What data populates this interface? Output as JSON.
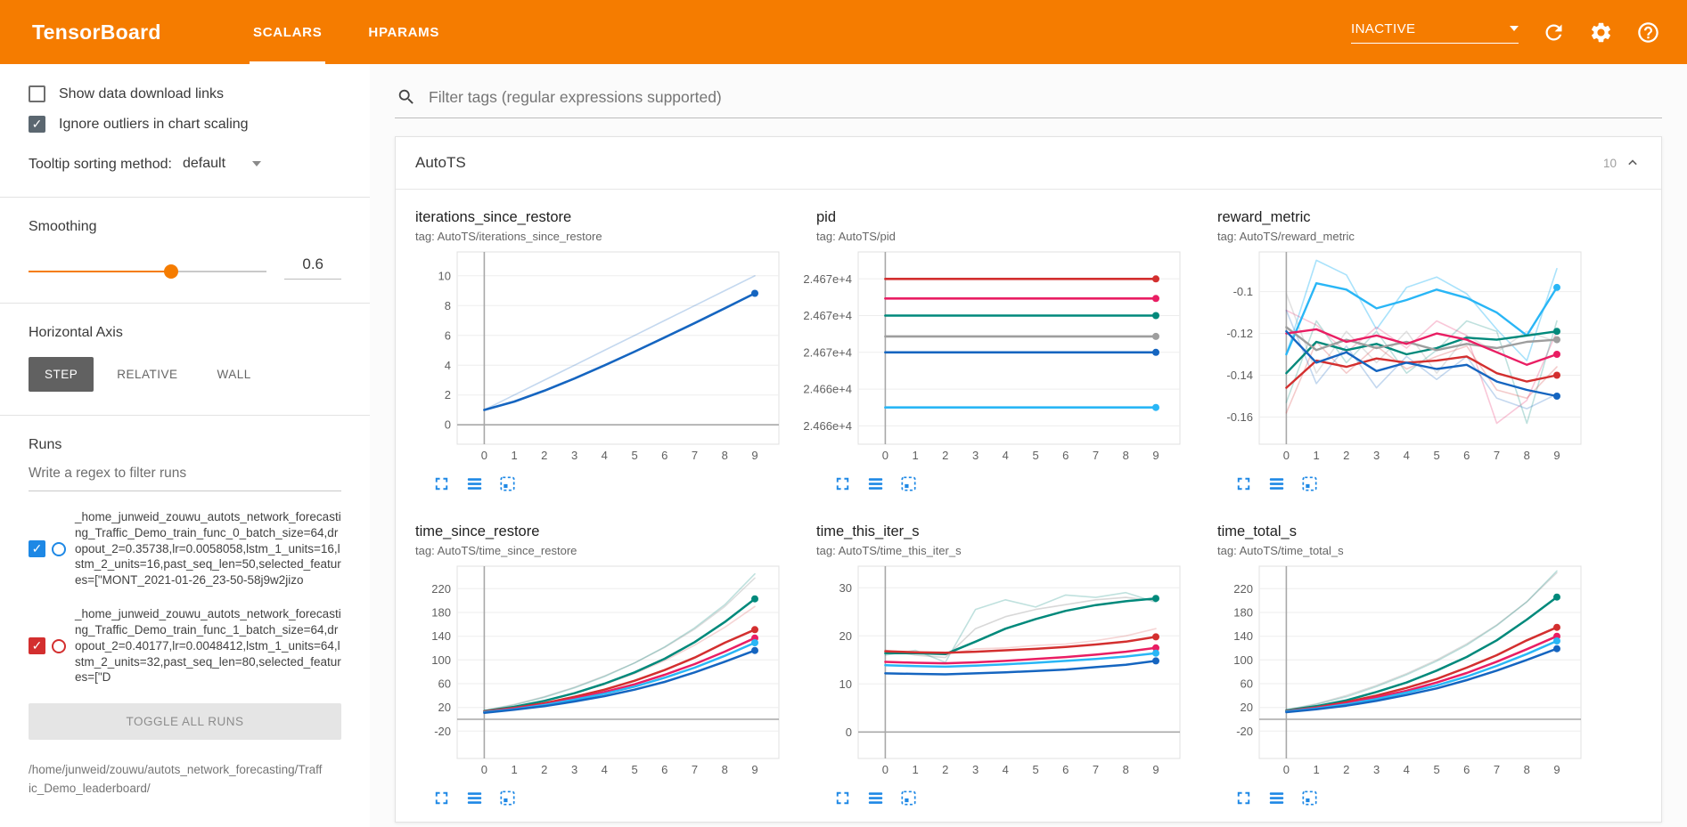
{
  "colors": {
    "header_bar": "#f57c00",
    "accent": "#f57c00",
    "chart_icon_blue": "#1e88e5",
    "active_axis_button": "#616161"
  },
  "header": {
    "title": "TensorBoard",
    "tabs": [
      {
        "label": "SCALARS",
        "active": true
      },
      {
        "label": "HPARAMS",
        "active": false
      }
    ],
    "status_dropdown": "INACTIVE"
  },
  "sidebar": {
    "checkboxes": [
      {
        "label": "Show data download links",
        "checked": false
      },
      {
        "label": "Ignore outliers in chart scaling",
        "checked": true
      }
    ],
    "tooltip_sorting_label": "Tooltip sorting method:",
    "tooltip_sorting_value": "default",
    "smoothing_label": "Smoothing",
    "smoothing_value": "0.6",
    "horizontal_axis_label": "Horizontal Axis",
    "axis_options": [
      {
        "label": "STEP",
        "active": true
      },
      {
        "label": "RELATIVE",
        "active": false
      },
      {
        "label": "WALL",
        "active": false
      }
    ],
    "runs": {
      "label": "Runs",
      "filter_placeholder": "Write a regex to filter runs",
      "items": [
        {
          "label": "_home_junweid_zouwu_autots_network_forecasting_Traffic_Demo_train_func_0_batch_size=64,dropout_2=0.35738,lr=0.0058058,lstm_1_units=16,lstm_2_units=16,past_seq_len=50,selected_features=[\"MONT_2021-01-26_23-50-58j9w2jizo",
          "color": "#1e88e5",
          "checked": true
        },
        {
          "label": "_home_junweid_zouwu_autots_network_forecasting_Traffic_Demo_train_func_1_batch_size=64,dropout_2=0.40177,lr=0.0048412,lstm_1_units=64,lstm_2_units=32,past_seq_len=80,selected_features=[\"D",
          "color": "#d32f2f",
          "checked": true
        }
      ],
      "toggle_all_label": "TOGGLE ALL RUNS",
      "footer_path": "/home/junweid/zouwu/autots_network_forecasting/Traffic_Demo_leaderboard/"
    }
  },
  "main": {
    "filter_placeholder": "Filter tags (regular expressions supported)",
    "card_title": "AutoTS",
    "card_count": "10"
  },
  "chart_data": [
    {
      "type": "line",
      "title": "iterations_since_restore",
      "tag": "tag: AutoTS/iterations_since_restore",
      "x": [
        0,
        1,
        2,
        3,
        4,
        5,
        6,
        7,
        8,
        9
      ],
      "ylim": [
        -1.3,
        11.6
      ],
      "zeroline": true,
      "yticks": [
        {
          "v": 0,
          "label": "0"
        },
        {
          "v": 2,
          "label": "2"
        },
        {
          "v": 4,
          "label": "4"
        },
        {
          "v": 6,
          "label": "6"
        },
        {
          "v": 8,
          "label": "8"
        },
        {
          "v": 10,
          "label": "10"
        }
      ],
      "series": [
        {
          "color": "#1565c0",
          "opacity": 0.25,
          "width": 1.6,
          "dot": false,
          "values": [
            1,
            2,
            3,
            4,
            5,
            6,
            7,
            8,
            9,
            10
          ]
        },
        {
          "color": "#1565c0",
          "opacity": 1,
          "width": 2.6,
          "dot": true,
          "values": [
            1,
            1.56,
            2.29,
            3.11,
            3.99,
            4.91,
            5.86,
            6.83,
            7.82,
            8.82
          ]
        }
      ]
    },
    {
      "type": "line",
      "title": "pid",
      "tag": "tag: AutoTS/pid",
      "x": [
        0,
        1,
        2,
        3,
        4,
        5,
        6,
        7,
        8,
        9
      ],
      "ylim": [
        24658.5,
        24674.2
      ],
      "zeroline": false,
      "yticks": [
        {
          "v": 24672,
          "label": "2.467e+4"
        },
        {
          "v": 24669,
          "label": "2.467e+4"
        },
        {
          "v": 24666,
          "label": "2.467e+4"
        },
        {
          "v": 24663,
          "label": "2.466e+4"
        },
        {
          "v": 24660,
          "label": "2.466e+4"
        }
      ],
      "series": [
        {
          "color": "#d32f2f",
          "width": 2.6,
          "dot": true,
          "flat": 24672
        },
        {
          "color": "#e91e63",
          "width": 2.6,
          "dot": true,
          "flat": 24670.4
        },
        {
          "color": "#00897b",
          "width": 2.6,
          "dot": true,
          "flat": 24669
        },
        {
          "color": "#9e9e9e",
          "width": 2.6,
          "dot": true,
          "flat": 24667.3
        },
        {
          "color": "#1565c0",
          "width": 2.6,
          "dot": true,
          "flat": 24666
        },
        {
          "color": "#29b6f6",
          "width": 2.6,
          "dot": true,
          "flat": 24661.5
        }
      ]
    },
    {
      "type": "line",
      "title": "reward_metric",
      "tag": "tag: AutoTS/reward_metric",
      "x": [
        0,
        1,
        2,
        3,
        4,
        5,
        6,
        7,
        8,
        9
      ],
      "ylim": [
        -0.173,
        -0.081
      ],
      "zeroline": false,
      "yticks": [
        {
          "v": -0.1,
          "label": "-0.1"
        },
        {
          "v": -0.12,
          "label": "-0.12"
        },
        {
          "v": -0.14,
          "label": "-0.14"
        },
        {
          "v": -0.16,
          "label": "-0.16"
        }
      ],
      "series": [
        {
          "color": "#29b6f6",
          "opacity": 0.4,
          "width": 1.6,
          "dot": false,
          "values": [
            -0.13,
            -0.085,
            -0.092,
            -0.118,
            -0.098,
            -0.093,
            -0.101,
            -0.118,
            -0.133,
            -0.089
          ]
        },
        {
          "color": "#e91e63",
          "opacity": 0.25,
          "width": 1.6,
          "dot": false,
          "values": [
            -0.109,
            -0.116,
            -0.129,
            -0.117,
            -0.127,
            -0.114,
            -0.121,
            -0.163,
            -0.152,
            -0.119
          ]
        },
        {
          "color": "#00897b",
          "opacity": 0.25,
          "width": 1.6,
          "dot": false,
          "values": [
            -0.153,
            -0.114,
            -0.134,
            -0.119,
            -0.139,
            -0.128,
            -0.114,
            -0.119,
            -0.163,
            -0.114
          ]
        },
        {
          "color": "#9e9e9e",
          "opacity": 0.3,
          "width": 1.6,
          "dot": false,
          "values": [
            -0.101,
            -0.139,
            -0.119,
            -0.134,
            -0.119,
            -0.139,
            -0.121,
            -0.129,
            -0.119,
            -0.124
          ]
        },
        {
          "color": "#d32f2f",
          "opacity": 0.25,
          "width": 1.6,
          "dot": false,
          "values": [
            -0.158,
            -0.124,
            -0.139,
            -0.126,
            -0.137,
            -0.131,
            -0.126,
            -0.147,
            -0.151,
            -0.136
          ]
        },
        {
          "color": "#1565c0",
          "opacity": 0.25,
          "width": 1.6,
          "dot": false,
          "values": [
            -0.109,
            -0.144,
            -0.126,
            -0.146,
            -0.131,
            -0.142,
            -0.131,
            -0.151,
            -0.156,
            -0.149
          ]
        },
        {
          "color": "#29b6f6",
          "width": 2.4,
          "dot": true,
          "values": [
            -0.13,
            -0.096,
            -0.099,
            -0.108,
            -0.104,
            -0.099,
            -0.103,
            -0.11,
            -0.121,
            -0.098
          ]
        },
        {
          "color": "#00897b",
          "width": 2.4,
          "dot": true,
          "values": [
            -0.139,
            -0.124,
            -0.128,
            -0.125,
            -0.13,
            -0.127,
            -0.122,
            -0.123,
            -0.121,
            -0.119
          ]
        },
        {
          "color": "#9e9e9e",
          "width": 2.4,
          "dot": true,
          "values": [
            -0.117,
            -0.128,
            -0.123,
            -0.127,
            -0.124,
            -0.128,
            -0.125,
            -0.127,
            -0.124,
            -0.123
          ]
        },
        {
          "color": "#e91e63",
          "width": 2.4,
          "dot": true,
          "values": [
            -0.12,
            -0.118,
            -0.124,
            -0.121,
            -0.125,
            -0.12,
            -0.123,
            -0.129,
            -0.135,
            -0.13
          ]
        },
        {
          "color": "#d32f2f",
          "width": 2.4,
          "dot": true,
          "values": [
            -0.146,
            -0.133,
            -0.136,
            -0.132,
            -0.134,
            -0.133,
            -0.131,
            -0.139,
            -0.143,
            -0.14
          ]
        },
        {
          "color": "#1565c0",
          "width": 2.4,
          "dot": true,
          "values": [
            -0.119,
            -0.134,
            -0.129,
            -0.138,
            -0.134,
            -0.137,
            -0.135,
            -0.143,
            -0.147,
            -0.15
          ]
        }
      ]
    },
    {
      "type": "line",
      "title": "time_since_restore",
      "tag": "tag: AutoTS/time_since_restore",
      "x": [
        0,
        1,
        2,
        3,
        4,
        5,
        6,
        7,
        8,
        9
      ],
      "ylim": [
        -66,
        258
      ],
      "zeroline": true,
      "yticks": [
        {
          "v": 220,
          "label": "220"
        },
        {
          "v": 180,
          "label": "180"
        },
        {
          "v": 140,
          "label": "140"
        },
        {
          "v": 100,
          "label": "100"
        },
        {
          "v": 60,
          "label": "60"
        },
        {
          "v": 20,
          "label": "20"
        },
        {
          "v": -20,
          "label": "-20"
        }
      ],
      "series": [
        {
          "color": "#9e9e9e",
          "opacity": 0.35,
          "width": 1.6,
          "dot": false,
          "values": [
            15,
            25,
            38,
            54,
            73,
            95,
            121,
            152,
            190,
            238
          ]
        },
        {
          "color": "#00897b",
          "opacity": 0.25,
          "width": 1.6,
          "dot": false,
          "values": [
            14,
            24,
            37,
            53,
            72,
            95,
            122,
            154,
            193,
            245
          ]
        },
        {
          "color": "#d32f2f",
          "opacity": 0.2,
          "width": 1.6,
          "dot": false,
          "values": [
            13,
            21,
            31,
            44,
            59,
            77,
            99,
            125,
            155,
            190
          ]
        },
        {
          "color": "#00897b",
          "width": 2.5,
          "dot": true,
          "values": [
            14,
            21,
            31,
            44,
            60,
            79,
            102,
            130,
            164,
            203
          ]
        },
        {
          "color": "#d32f2f",
          "width": 2.5,
          "dot": true,
          "values": [
            13,
            19,
            27,
            38,
            50,
            65,
            83,
            104,
            129,
            151
          ]
        },
        {
          "color": "#e91e63",
          "width": 2.5,
          "dot": true,
          "values": [
            12,
            18,
            25,
            35,
            46,
            59,
            75,
            93,
            114,
            137
          ]
        },
        {
          "color": "#29b6f6",
          "width": 2.5,
          "dot": true,
          "values": [
            12,
            17,
            24,
            33,
            43,
            55,
            70,
            87,
            107,
            129
          ]
        },
        {
          "color": "#1565c0",
          "width": 2.5,
          "dot": true,
          "values": [
            11,
            16,
            22,
            30,
            39,
            50,
            63,
            79,
            97,
            116
          ]
        }
      ]
    },
    {
      "type": "line",
      "title": "time_this_iter_s",
      "tag": "tag: AutoTS/time_this_iter_s",
      "x": [
        0,
        1,
        2,
        3,
        4,
        5,
        6,
        7,
        8,
        9
      ],
      "ylim": [
        -5.5,
        34.5
      ],
      "zeroline": true,
      "yticks": [
        {
          "v": 30,
          "label": "30"
        },
        {
          "v": 20,
          "label": "20"
        },
        {
          "v": 10,
          "label": "10"
        },
        {
          "v": 0,
          "label": "0"
        }
      ],
      "series": [
        {
          "color": "#9e9e9e",
          "opacity": 0.4,
          "width": 1.6,
          "dot": false,
          "values": [
            17,
            16,
            15.5,
            21.5,
            24,
            25.5,
            26.5,
            27.5,
            28,
            27.3
          ]
        },
        {
          "color": "#00897b",
          "opacity": 0.25,
          "width": 1.6,
          "dot": false,
          "values": [
            16,
            17,
            14.5,
            25.5,
            27.5,
            26,
            28.5,
            28,
            29,
            27
          ]
        },
        {
          "color": "#d32f2f",
          "opacity": 0.2,
          "width": 1.6,
          "dot": false,
          "values": [
            17,
            16.4,
            16.1,
            17.3,
            17.5,
            18,
            18.3,
            19,
            20,
            21.5
          ]
        },
        {
          "color": "#00897b",
          "width": 2.5,
          "dot": true,
          "values": [
            16.4,
            16.4,
            16.2,
            18.8,
            21.5,
            23.5,
            25.2,
            26.4,
            27.2,
            27.8
          ]
        },
        {
          "color": "#d32f2f",
          "width": 2.5,
          "dot": true,
          "values": [
            16.8,
            16.6,
            16.5,
            16.7,
            17.0,
            17.3,
            17.7,
            18.2,
            18.8,
            19.8
          ]
        },
        {
          "color": "#e91e63",
          "width": 2.5,
          "dot": true,
          "values": [
            14.6,
            14.4,
            14.3,
            14.5,
            14.8,
            15.2,
            15.6,
            16.1,
            16.7,
            17.5
          ]
        },
        {
          "color": "#29b6f6",
          "width": 2.5,
          "dot": true,
          "values": [
            13.9,
            13.7,
            13.6,
            13.8,
            14.1,
            14.4,
            14.8,
            15.2,
            15.7,
            16.4
          ]
        },
        {
          "color": "#1565c0",
          "width": 2.5,
          "dot": true,
          "values": [
            12.2,
            12.1,
            12.0,
            12.2,
            12.4,
            12.7,
            13.0,
            13.5,
            14.0,
            14.8
          ]
        }
      ]
    },
    {
      "type": "line",
      "title": "time_total_s",
      "tag": "tag: AutoTS/time_total_s",
      "x": [
        0,
        1,
        2,
        3,
        4,
        5,
        6,
        7,
        8,
        9
      ],
      "ylim": [
        -66,
        258
      ],
      "zeroline": true,
      "yticks": [
        {
          "v": 220,
          "label": "220"
        },
        {
          "v": 180,
          "label": "180"
        },
        {
          "v": 140,
          "label": "140"
        },
        {
          "v": 100,
          "label": "100"
        },
        {
          "v": 60,
          "label": "60"
        },
        {
          "v": 20,
          "label": "20"
        },
        {
          "v": -20,
          "label": "-20"
        }
      ],
      "series": [
        {
          "color": "#9e9e9e",
          "opacity": 0.35,
          "width": 1.6,
          "dot": false,
          "values": [
            16,
            26,
            40,
            57,
            77,
            100,
            127,
            159,
            198,
            247
          ]
        },
        {
          "color": "#00897b",
          "opacity": 0.25,
          "width": 1.6,
          "dot": false,
          "values": [
            15,
            25,
            38,
            55,
            75,
            98,
            125,
            158,
            198,
            250
          ]
        },
        {
          "color": "#00897b",
          "width": 2.5,
          "dot": true,
          "values": [
            15,
            22,
            32,
            46,
            62,
            82,
            105,
            133,
            168,
            206
          ]
        },
        {
          "color": "#d32f2f",
          "width": 2.5,
          "dot": true,
          "values": [
            14,
            20,
            29,
            40,
            53,
            68,
            87,
            108,
            133,
            155
          ]
        },
        {
          "color": "#e91e63",
          "width": 2.5,
          "dot": true,
          "values": [
            13,
            19,
            27,
            37,
            48,
            62,
            78,
            97,
            118,
            140
          ]
        },
        {
          "color": "#29b6f6",
          "width": 2.5,
          "dot": true,
          "values": [
            13,
            18,
            25,
            34,
            45,
            57,
            72,
            90,
            110,
            132
          ]
        },
        {
          "color": "#1565c0",
          "width": 2.5,
          "dot": true,
          "values": [
            12,
            17,
            23,
            31,
            41,
            52,
            66,
            82,
            100,
            119
          ]
        }
      ]
    }
  ]
}
